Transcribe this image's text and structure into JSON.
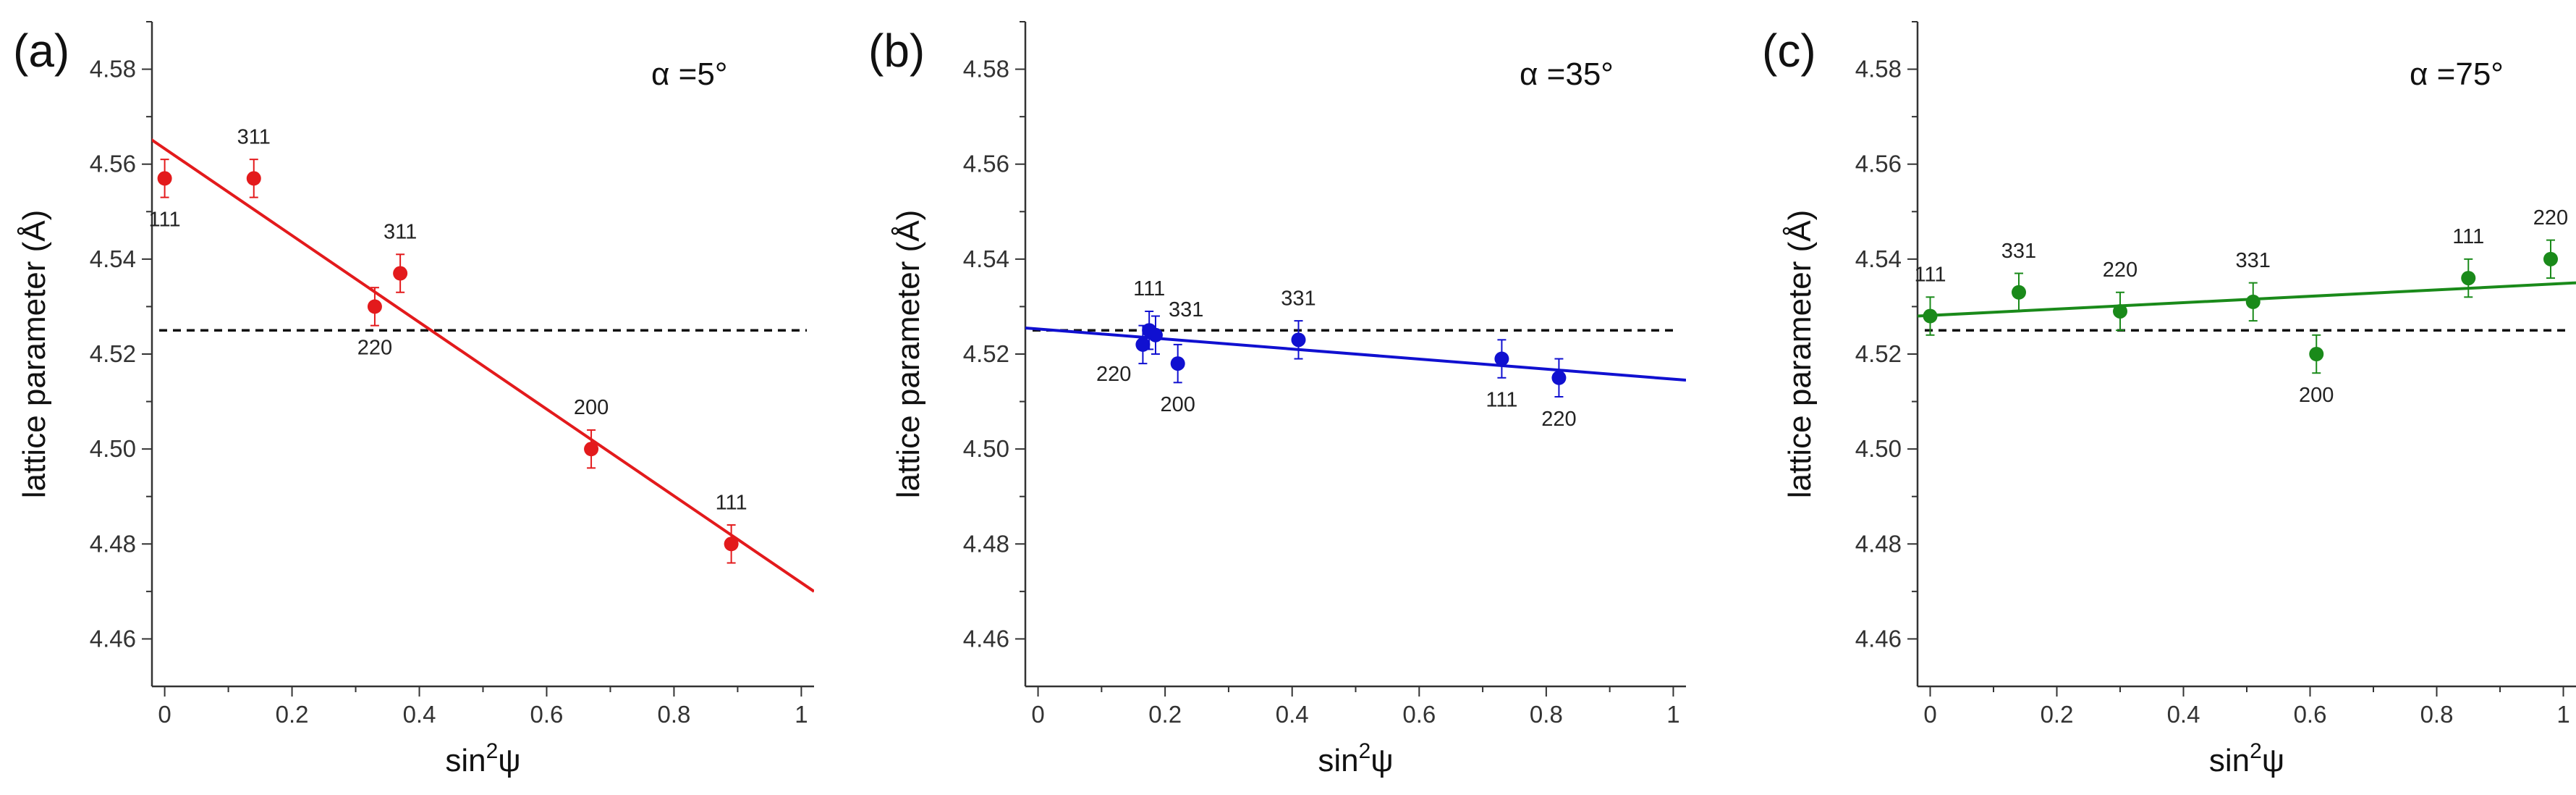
{
  "reference_value": 4.525,
  "chart_data": [
    {
      "type": "scatter",
      "panel_label": "(a)",
      "annotation": "α =5°",
      "color": "#e31a1c",
      "xlabel_base": "sin",
      "xlabel_sup": "2",
      "xlabel_tail": "ψ",
      "ylabel": "lattice parameter (Å)",
      "xlim": [
        -0.02,
        1.02
      ],
      "ylim": [
        4.45,
        4.59
      ],
      "xticks": [
        0,
        0.2,
        0.4,
        0.6,
        0.8,
        1
      ],
      "xtick_labels": [
        "0",
        "0.2",
        "0.4",
        "0.6",
        "0.8",
        "1"
      ],
      "yticks": [
        4.46,
        4.48,
        4.5,
        4.52,
        4.54,
        4.56,
        4.58
      ],
      "ytick_labels": [
        "4.46",
        "4.48",
        "4.50",
        "4.52",
        "4.54",
        "4.56",
        "4.58"
      ],
      "points": [
        {
          "x": 0.0,
          "y": 4.557,
          "err": 0.004,
          "label": "111",
          "label_pos": "below"
        },
        {
          "x": 0.14,
          "y": 4.557,
          "err": 0.004,
          "label": "311",
          "label_pos": "above"
        },
        {
          "x": 0.33,
          "y": 4.53,
          "err": 0.004,
          "label": "220",
          "label_pos": "below"
        },
        {
          "x": 0.37,
          "y": 4.537,
          "err": 0.004,
          "label": "311",
          "label_pos": "above"
        },
        {
          "x": 0.67,
          "y": 4.5,
          "err": 0.004,
          "label": "200",
          "label_pos": "above"
        },
        {
          "x": 0.89,
          "y": 4.48,
          "err": 0.004,
          "label": "111",
          "label_pos": "above"
        }
      ],
      "fit_line": {
        "x": [
          -0.03,
          1.02
        ],
        "y": [
          4.566,
          4.47
        ]
      }
    },
    {
      "type": "scatter",
      "panel_label": "(b)",
      "annotation": "α =35°",
      "color": "#1010d0",
      "xlabel_base": "sin",
      "xlabel_sup": "2",
      "xlabel_tail": "ψ",
      "ylabel": "lattice parameter (Å)",
      "xlim": [
        -0.02,
        1.02
      ],
      "ylim": [
        4.45,
        4.59
      ],
      "xticks": [
        0,
        0.2,
        0.4,
        0.6,
        0.8,
        1
      ],
      "xtick_labels": [
        "0",
        "0.2",
        "0.4",
        "0.6",
        "0.8",
        "1"
      ],
      "yticks": [
        4.46,
        4.48,
        4.5,
        4.52,
        4.54,
        4.56,
        4.58
      ],
      "ytick_labels": [
        "4.46",
        "4.48",
        "4.50",
        "4.52",
        "4.54",
        "4.56",
        "4.58"
      ],
      "points": [
        {
          "x": 0.165,
          "y": 4.522,
          "err": 0.004,
          "label": "220",
          "label_pos": "lower-left"
        },
        {
          "x": 0.175,
          "y": 4.525,
          "err": 0.004,
          "label": "111",
          "label_pos": "above"
        },
        {
          "x": 0.185,
          "y": 4.524,
          "err": 0.004,
          "label": "331",
          "label_pos": "upper-right"
        },
        {
          "x": 0.22,
          "y": 4.518,
          "err": 0.004,
          "label": "200",
          "label_pos": "below"
        },
        {
          "x": 0.41,
          "y": 4.523,
          "err": 0.004,
          "label": "331",
          "label_pos": "above"
        },
        {
          "x": 0.73,
          "y": 4.519,
          "err": 0.004,
          "label": "111",
          "label_pos": "below"
        },
        {
          "x": 0.82,
          "y": 4.515,
          "err": 0.004,
          "label": "220",
          "label_pos": "below"
        }
      ],
      "fit_line": {
        "x": [
          -0.02,
          1.02
        ],
        "y": [
          4.5255,
          4.5145
        ]
      }
    },
    {
      "type": "scatter",
      "panel_label": "(c)",
      "annotation": "α =75°",
      "color": "#1a8a1a",
      "xlabel_base": "sin",
      "xlabel_sup": "2",
      "xlabel_tail": "ψ",
      "ylabel": "lattice parameter (Å)",
      "xlim": [
        -0.02,
        1.02
      ],
      "ylim": [
        4.45,
        4.59
      ],
      "xticks": [
        0,
        0.2,
        0.4,
        0.6,
        0.8,
        1
      ],
      "xtick_labels": [
        "0",
        "0.2",
        "0.4",
        "0.6",
        "0.8",
        "1"
      ],
      "yticks": [
        4.46,
        4.48,
        4.5,
        4.52,
        4.54,
        4.56,
        4.58
      ],
      "ytick_labels": [
        "4.46",
        "4.48",
        "4.50",
        "4.52",
        "4.54",
        "4.56",
        "4.58"
      ],
      "points": [
        {
          "x": 0.0,
          "y": 4.528,
          "err": 0.004,
          "label": "111",
          "label_pos": "above"
        },
        {
          "x": 0.14,
          "y": 4.533,
          "err": 0.004,
          "label": "331",
          "label_pos": "above"
        },
        {
          "x": 0.3,
          "y": 4.529,
          "err": 0.004,
          "label": "220",
          "label_pos": "above"
        },
        {
          "x": 0.51,
          "y": 4.531,
          "err": 0.004,
          "label": "331",
          "label_pos": "above"
        },
        {
          "x": 0.61,
          "y": 4.52,
          "err": 0.004,
          "label": "200",
          "label_pos": "below"
        },
        {
          "x": 0.85,
          "y": 4.536,
          "err": 0.004,
          "label": "111",
          "label_pos": "above"
        },
        {
          "x": 0.98,
          "y": 4.54,
          "err": 0.004,
          "label": "220",
          "label_pos": "above"
        }
      ],
      "fit_line": {
        "x": [
          -0.02,
          1.02
        ],
        "y": [
          4.528,
          4.535
        ]
      }
    }
  ]
}
